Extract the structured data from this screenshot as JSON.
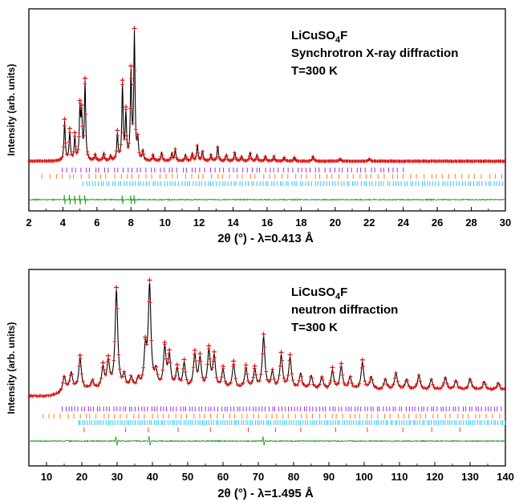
{
  "chart_data": [
    {
      "type": "line",
      "panel": "top",
      "xlabel": "2θ (°) - λ=0.413 Å",
      "ylabel": "Intensity (arb. units)",
      "xlim": [
        2,
        30
      ],
      "x_ticks": [
        2,
        4,
        6,
        8,
        10,
        12,
        14,
        16,
        18,
        20,
        22,
        24,
        26,
        28,
        30
      ],
      "annotation": {
        "compound": "LiCuSO",
        "subscript": "4",
        "suffix": "F",
        "line2": "Synchrotron X-ray diffraction",
        "line3": "T=300 K"
      },
      "grid": false,
      "peaks": [
        {
          "x": 4.1,
          "h": 0.3
        },
        {
          "x": 4.4,
          "h": 0.22
        },
        {
          "x": 4.7,
          "h": 0.18
        },
        {
          "x": 5.0,
          "h": 0.38
        },
        {
          "x": 5.1,
          "h": 0.32
        },
        {
          "x": 5.3,
          "h": 0.6
        },
        {
          "x": 5.9,
          "h": 0.05
        },
        {
          "x": 6.4,
          "h": 0.06
        },
        {
          "x": 6.8,
          "h": 0.04
        },
        {
          "x": 7.2,
          "h": 0.2
        },
        {
          "x": 7.5,
          "h": 0.58
        },
        {
          "x": 7.7,
          "h": 0.35
        },
        {
          "x": 8.0,
          "h": 0.66
        },
        {
          "x": 8.2,
          "h": 0.97
        },
        {
          "x": 8.4,
          "h": 0.15
        },
        {
          "x": 8.7,
          "h": 0.08
        },
        {
          "x": 9.3,
          "h": 0.05
        },
        {
          "x": 9.8,
          "h": 0.07
        },
        {
          "x": 10.4,
          "h": 0.06
        },
        {
          "x": 10.6,
          "h": 0.09
        },
        {
          "x": 11.2,
          "h": 0.05
        },
        {
          "x": 11.6,
          "h": 0.06
        },
        {
          "x": 11.9,
          "h": 0.13
        },
        {
          "x": 12.2,
          "h": 0.08
        },
        {
          "x": 12.7,
          "h": 0.05
        },
        {
          "x": 13.1,
          "h": 0.12
        },
        {
          "x": 13.6,
          "h": 0.05
        },
        {
          "x": 14.1,
          "h": 0.07
        },
        {
          "x": 14.5,
          "h": 0.04
        },
        {
          "x": 15.0,
          "h": 0.07
        },
        {
          "x": 15.4,
          "h": 0.05
        },
        {
          "x": 15.9,
          "h": 0.04
        },
        {
          "x": 16.4,
          "h": 0.04
        },
        {
          "x": 17.0,
          "h": 0.03
        },
        {
          "x": 17.6,
          "h": 0.03
        },
        {
          "x": 18.7,
          "h": 0.04
        },
        {
          "x": 20.3,
          "h": 0.02
        },
        {
          "x": 22.0,
          "h": 0.02
        }
      ],
      "tick_rows": [
        {
          "color": "#9b30e8",
          "from": 4.0,
          "to": 24.0,
          "step": 0.27
        },
        {
          "color": "#ff7f24",
          "from": 2.8,
          "to": 30.0,
          "step": 0.38
        },
        {
          "color": "#2ec4ff",
          "from": 5.2,
          "to": 30.0,
          "step": 0.17
        }
      ],
      "diff_spikes": [
        4.1,
        4.4,
        4.7,
        5.0,
        5.3,
        7.5,
        8.0,
        8.2
      ]
    },
    {
      "type": "line",
      "panel": "bottom",
      "xlabel": "2θ (°) - λ=1.495 Å",
      "ylabel": "Intensity (arb. units)",
      "xlim": [
        5,
        140
      ],
      "x_ticks": [
        10,
        20,
        30,
        40,
        50,
        60,
        70,
        80,
        90,
        100,
        110,
        120,
        130,
        140
      ],
      "annotation": {
        "compound": "LiCuSO",
        "subscript": "4",
        "suffix": "F",
        "line2": "neutron diffraction",
        "line3": "T=300 K"
      },
      "grid": false,
      "peaks": [
        {
          "x": 15.0,
          "h": 0.14
        },
        {
          "x": 17.0,
          "h": 0.16
        },
        {
          "x": 19.5,
          "h": 0.3
        },
        {
          "x": 23.0,
          "h": 0.08
        },
        {
          "x": 26.0,
          "h": 0.2
        },
        {
          "x": 27.5,
          "h": 0.25
        },
        {
          "x": 29.8,
          "h": 0.95
        },
        {
          "x": 32.0,
          "h": 0.12
        },
        {
          "x": 34.0,
          "h": 0.1
        },
        {
          "x": 36.0,
          "h": 0.09
        },
        {
          "x": 38.0,
          "h": 0.35
        },
        {
          "x": 39.2,
          "h": 0.98
        },
        {
          "x": 41.0,
          "h": 0.15
        },
        {
          "x": 43.5,
          "h": 0.38
        },
        {
          "x": 44.8,
          "h": 0.3
        },
        {
          "x": 47.0,
          "h": 0.18
        },
        {
          "x": 49.0,
          "h": 0.24
        },
        {
          "x": 52.0,
          "h": 0.32
        },
        {
          "x": 53.5,
          "h": 0.28
        },
        {
          "x": 56.0,
          "h": 0.36
        },
        {
          "x": 57.5,
          "h": 0.3
        },
        {
          "x": 60.0,
          "h": 0.18
        },
        {
          "x": 63.0,
          "h": 0.24
        },
        {
          "x": 66.5,
          "h": 0.2
        },
        {
          "x": 69.0,
          "h": 0.18
        },
        {
          "x": 71.5,
          "h": 0.5
        },
        {
          "x": 74.0,
          "h": 0.16
        },
        {
          "x": 76.5,
          "h": 0.32
        },
        {
          "x": 79.0,
          "h": 0.3
        },
        {
          "x": 82.0,
          "h": 0.15
        },
        {
          "x": 85.0,
          "h": 0.13
        },
        {
          "x": 88.0,
          "h": 0.12
        },
        {
          "x": 91.0,
          "h": 0.18
        },
        {
          "x": 93.5,
          "h": 0.22
        },
        {
          "x": 96.0,
          "h": 0.12
        },
        {
          "x": 99.5,
          "h": 0.26
        },
        {
          "x": 102.0,
          "h": 0.12
        },
        {
          "x": 106.0,
          "h": 0.1
        },
        {
          "x": 109.0,
          "h": 0.16
        },
        {
          "x": 112.0,
          "h": 0.1
        },
        {
          "x": 115.5,
          "h": 0.14
        },
        {
          "x": 119.0,
          "h": 0.1
        },
        {
          "x": 123.0,
          "h": 0.12
        },
        {
          "x": 126.0,
          "h": 0.09
        },
        {
          "x": 130.0,
          "h": 0.11
        },
        {
          "x": 134.0,
          "h": 0.08
        },
        {
          "x": 138.0,
          "h": 0.07
        }
      ],
      "tick_rows": [
        {
          "color": "#9b30e8",
          "from": 14.5,
          "to": 139.0,
          "step": 0.9
        },
        {
          "color": "#ff7f24",
          "from": 9.0,
          "to": 140.0,
          "step": 1.7
        },
        {
          "color": "#2ec4ff",
          "from": 19.0,
          "to": 140.0,
          "step": 0.65
        },
        {
          "color": "#ff3b3b",
          "from": 22.0,
          "to": 135.0,
          "step": 8.7
        }
      ],
      "diff_spikes": [
        29.8,
        39.2,
        71.5
      ]
    }
  ]
}
